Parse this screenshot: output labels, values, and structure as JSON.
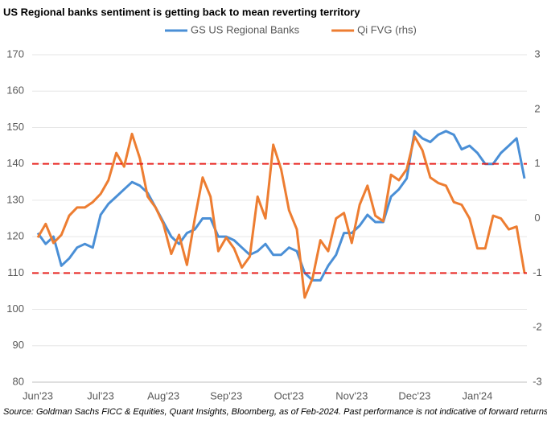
{
  "chart_data": {
    "type": "line",
    "title": "US Regional banks sentiment is getting back to mean reverting territory",
    "source": "Source: Goldman Sachs FICC & Equities, Quant Insights, Bloomberg, as of Feb-2024. Past performance is not indicative of forward returns.",
    "categories": [
      "Jun'23",
      null,
      null,
      null,
      null,
      null,
      null,
      null,
      "Jul'23",
      null,
      null,
      null,
      null,
      null,
      null,
      null,
      "Aug'23",
      null,
      null,
      null,
      null,
      null,
      null,
      null,
      "Sep'23",
      null,
      null,
      null,
      null,
      null,
      null,
      null,
      "Oct'23",
      null,
      null,
      null,
      null,
      null,
      null,
      null,
      "Nov'23",
      null,
      null,
      null,
      null,
      null,
      null,
      null,
      "Dec'23",
      null,
      null,
      null,
      null,
      null,
      null,
      null,
      "Jan'24",
      null,
      null,
      null,
      null,
      null,
      null
    ],
    "series": [
      {
        "name": "GS US Regional Banks",
        "color": "#4a8fd6",
        "axis": "y",
        "values": [
          121,
          118,
          120,
          112,
          114,
          117,
          118,
          117,
          126,
          129,
          131,
          133,
          135,
          134,
          132,
          128,
          124,
          120,
          118,
          121,
          122,
          125,
          125,
          120,
          120,
          119,
          117,
          115,
          116,
          118,
          115,
          115,
          117,
          116,
          110,
          108,
          108,
          112,
          115,
          121,
          121,
          123,
          126,
          124,
          124,
          131,
          133,
          136,
          149,
          147,
          146,
          148,
          149,
          148,
          144,
          145,
          143,
          140,
          140,
          143,
          145,
          147,
          136
        ]
      },
      {
        "name": "Qi FVG (rhs)",
        "color": "#ed7d31",
        "axis": "y2",
        "values": [
          -0.35,
          -0.1,
          -0.45,
          -0.3,
          0.05,
          0.2,
          0.2,
          0.3,
          0.45,
          0.7,
          1.2,
          0.95,
          1.55,
          1.1,
          0.4,
          0.2,
          -0.1,
          -0.65,
          -0.3,
          -0.85,
          0.0,
          0.75,
          0.4,
          -0.6,
          -0.35,
          -0.55,
          -0.9,
          -0.7,
          0.4,
          0.0,
          1.35,
          0.9,
          0.15,
          -0.2,
          -1.45,
          -1.1,
          -0.4,
          -0.6,
          0.0,
          0.1,
          -0.45,
          0.25,
          0.6,
          0.05,
          -0.05,
          0.8,
          0.7,
          0.9,
          1.5,
          1.25,
          0.75,
          0.65,
          0.6,
          0.3,
          0.25,
          0.0,
          -0.55,
          -0.55,
          0.05,
          0.0,
          -0.2,
          -0.15,
          -1.0
        ]
      }
    ],
    "ylim": [
      80,
      170
    ],
    "yticks": [
      80,
      90,
      100,
      110,
      120,
      130,
      140,
      150,
      160,
      170
    ],
    "y2lim": [
      -3,
      3
    ],
    "y2ticks": [
      -3,
      -2,
      -1,
      0,
      1,
      2,
      3
    ],
    "grid": true,
    "reference_lines": [
      {
        "value": 1,
        "axis": "y2",
        "color": "#e8231f"
      },
      {
        "value": -1,
        "axis": "y2",
        "color": "#e8231f"
      }
    ]
  }
}
